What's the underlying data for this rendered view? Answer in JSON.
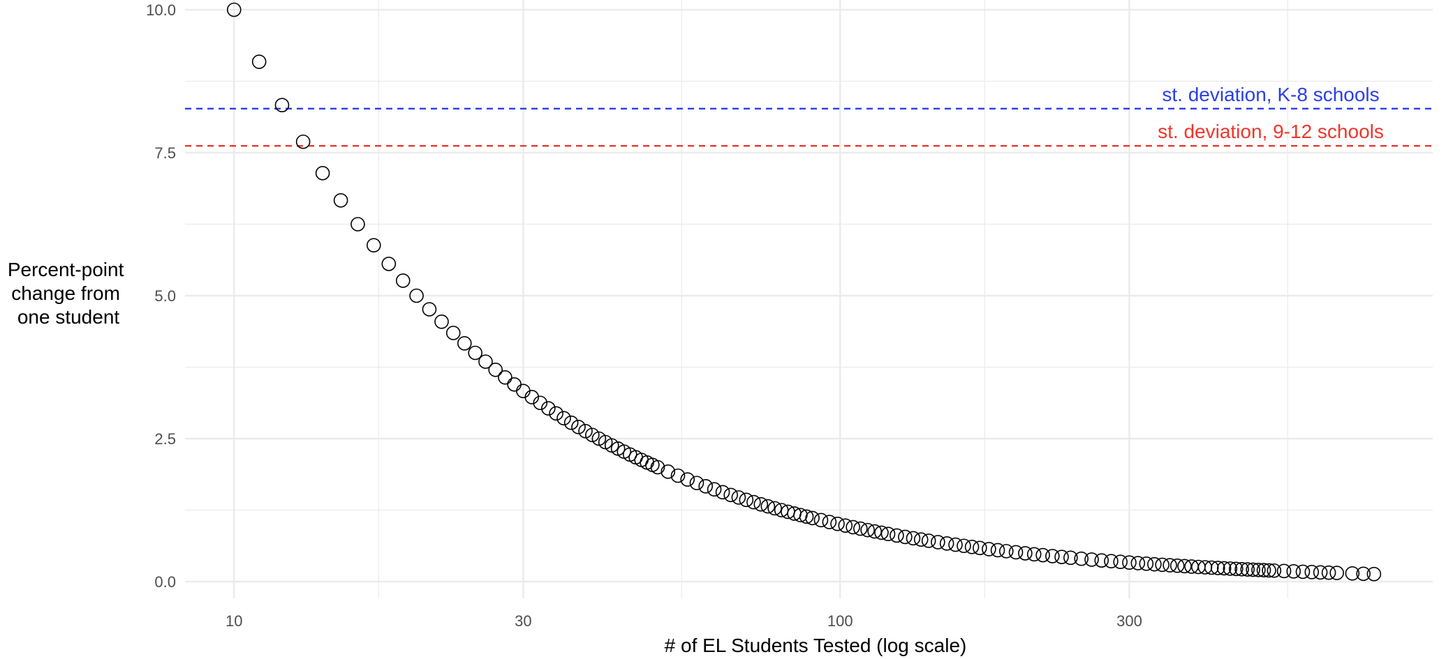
{
  "chart_data": {
    "type": "scatter",
    "title": "",
    "xlabel": "# of EL Students Tested (log scale)",
    "ylabel_lines": [
      "Percent-point",
      "change from",
      "one student"
    ],
    "x_scale": "log",
    "xlim": [
      8.3,
      950
    ],
    "ylim": [
      -0.55,
      10.0
    ],
    "x_ticks": [
      10,
      30,
      100,
      300
    ],
    "x_tick_labels": [
      "10",
      "30",
      "100",
      "300"
    ],
    "x_minor_gridlines": [
      17.32,
      54.77,
      173.2,
      547.7
    ],
    "y_ticks": [
      0,
      2.5,
      5,
      7.5,
      10
    ],
    "y_tick_labels": [
      "0.0",
      "2.5",
      "5.0",
      "7.5",
      "10.0"
    ],
    "y_minor_gridlines": [
      1.25,
      3.75,
      6.25,
      8.75
    ],
    "grid": true,
    "marker": "open-circle",
    "series": [
      {
        "formula": "y = 100 / n",
        "x": [
          10,
          11,
          12,
          13,
          14,
          15,
          16,
          17,
          18,
          19,
          20,
          21,
          22,
          23,
          24,
          25,
          26,
          27,
          28,
          29,
          30,
          31,
          32,
          33,
          34,
          35,
          36,
          37,
          38,
          39,
          40,
          41,
          42,
          43,
          44,
          45,
          46,
          47,
          48,
          49,
          50,
          52,
          54,
          56,
          58,
          60,
          62,
          64,
          66,
          68,
          70,
          72,
          74,
          76,
          78,
          80,
          82,
          84,
          86,
          88,
          90,
          93,
          96,
          99,
          102,
          105,
          108,
          111,
          114,
          117,
          120,
          124,
          128,
          132,
          136,
          140,
          145,
          150,
          155,
          160,
          165,
          170,
          176,
          182,
          188,
          195,
          202,
          209,
          216,
          224,
          232,
          240,
          250,
          260,
          270,
          280,
          290,
          300,
          310,
          320,
          330,
          340,
          350,
          360,
          370,
          380,
          390,
          400,
          410,
          420,
          430,
          440,
          450,
          460,
          470,
          480,
          490,
          500,
          510,
          520,
          540,
          560,
          580,
          600,
          620,
          640,
          660,
          700,
          730,
          760
        ],
        "y": [
          10,
          9.091,
          8.333,
          7.692,
          7.143,
          6.667,
          6.25,
          5.882,
          5.556,
          5.263,
          5,
          4.762,
          4.545,
          4.348,
          4.167,
          4,
          3.846,
          3.704,
          3.571,
          3.448,
          3.333,
          3.226,
          3.125,
          3.03,
          2.941,
          2.857,
          2.778,
          2.703,
          2.632,
          2.564,
          2.5,
          2.439,
          2.381,
          2.326,
          2.273,
          2.222,
          2.174,
          2.128,
          2.083,
          2.041,
          2,
          1.923,
          1.852,
          1.786,
          1.724,
          1.667,
          1.613,
          1.563,
          1.515,
          1.471,
          1.429,
          1.389,
          1.351,
          1.316,
          1.282,
          1.25,
          1.22,
          1.19,
          1.163,
          1.136,
          1.111,
          1.075,
          1.042,
          1.01,
          0.98,
          0.952,
          0.926,
          0.901,
          0.877,
          0.855,
          0.833,
          0.806,
          0.781,
          0.758,
          0.735,
          0.714,
          0.69,
          0.667,
          0.645,
          0.625,
          0.606,
          0.588,
          0.568,
          0.549,
          0.532,
          0.513,
          0.495,
          0.478,
          0.463,
          0.446,
          0.431,
          0.417,
          0.4,
          0.385,
          0.37,
          0.357,
          0.345,
          0.333,
          0.323,
          0.313,
          0.303,
          0.294,
          0.286,
          0.278,
          0.27,
          0.263,
          0.256,
          0.25,
          0.244,
          0.238,
          0.233,
          0.227,
          0.222,
          0.217,
          0.213,
          0.208,
          0.204,
          0.2,
          0.196,
          0.192,
          0.185,
          0.179,
          0.172,
          0.167,
          0.161,
          0.156,
          0.152,
          0.143,
          0.137,
          0.132
        ]
      }
    ],
    "reference_lines": [
      {
        "label": "st. deviation, K-8 schools",
        "y": 8.27,
        "color": "#2a3fe8",
        "style": "dashed"
      },
      {
        "label": "st. deviation, 9-12 schools",
        "y": 7.62,
        "color": "#f0362a",
        "style": "dashed"
      }
    ],
    "colors": {
      "grid": "#ebebeb",
      "points": "#000000",
      "tick_text": "#4d4d4d"
    }
  }
}
